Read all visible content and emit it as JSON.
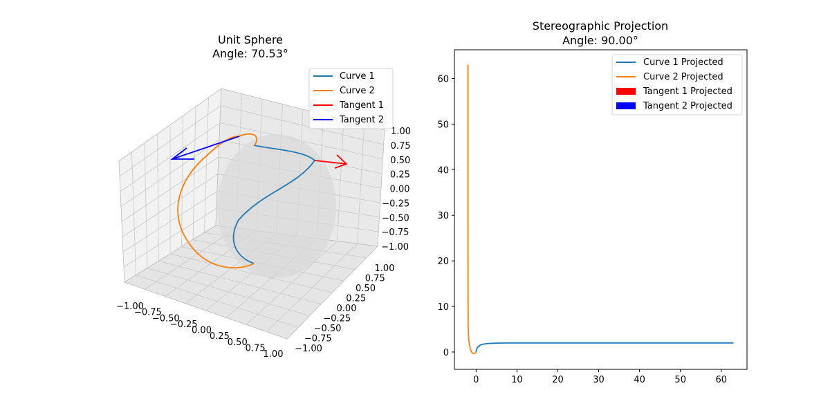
{
  "chart_data": [
    {
      "type": "line",
      "projection": "3d",
      "title": "Unit Sphere",
      "subtitle": "Angle: 70.53°",
      "xlim": [
        -1,
        1
      ],
      "ylim": [
        -1,
        1
      ],
      "zlim": [
        -1,
        1
      ],
      "x_ticks": [
        "−1.00",
        "−0.75",
        "−0.50",
        "−0.25",
        "0.00",
        "0.25",
        "0.50",
        "0.75",
        "1.00"
      ],
      "y_ticks": [
        "−1.00",
        "−0.75",
        "−0.50",
        "−0.25",
        "0.00",
        "0.25",
        "0.50",
        "0.75",
        "1.00"
      ],
      "z_ticks": [
        "−1.00",
        "−0.75",
        "−0.50",
        "−0.25",
        "0.00",
        "0.25",
        "0.50",
        "0.75",
        "1.00"
      ],
      "grid": true,
      "legend_position": "top-right",
      "surface": "unit sphere",
      "series": [
        {
          "name": "Curve 1",
          "color": "#1f77b4",
          "kind": "line"
        },
        {
          "name": "Curve 2",
          "color": "#ff7f0e",
          "kind": "line"
        },
        {
          "name": "Tangent 1",
          "color": "#ff0000",
          "kind": "arrow"
        },
        {
          "name": "Tangent 2",
          "color": "#0000ff",
          "kind": "arrow"
        }
      ]
    },
    {
      "type": "line",
      "title": "Stereographic Projection",
      "subtitle": "Angle: 90.00°",
      "xlim": [
        -5.3,
        66.3
      ],
      "ylim": [
        -3.8,
        66.3
      ],
      "x_ticks": [
        0,
        10,
        20,
        30,
        40,
        50,
        60
      ],
      "y_ticks": [
        0,
        10,
        20,
        30,
        40,
        50,
        60
      ],
      "grid": false,
      "legend_position": "top-right",
      "series": [
        {
          "name": "Curve 1 Projected",
          "color": "#1f77b4",
          "kind": "line",
          "x": [
            0.0,
            0.1,
            0.3,
            0.6,
            1.0,
            1.5,
            2.2,
            3.0,
            4.5,
            6.0,
            8.0,
            10.0,
            15.0,
            20.0,
            30.0,
            40.0,
            50.0,
            63.0
          ],
          "y": [
            0.0,
            0.5,
            0.9,
            1.25,
            1.5,
            1.68,
            1.8,
            1.87,
            1.93,
            1.96,
            1.98,
            1.99,
            2.0,
            2.0,
            2.0,
            2.0,
            2.0,
            2.0
          ]
        },
        {
          "name": "Curve 2 Projected",
          "color": "#ff7f0e",
          "kind": "line",
          "x": [
            -2.0,
            -2.0,
            -1.98,
            -1.96,
            -1.93,
            -1.87,
            -1.78,
            -1.6,
            -1.4,
            -1.1,
            -0.8,
            -0.5,
            -0.2,
            0.0
          ],
          "y": [
            63.0,
            40.0,
            20.0,
            10.0,
            6.0,
            4.0,
            2.5,
            1.5,
            0.6,
            0.0,
            -0.3,
            -0.3,
            -0.2,
            0.0
          ]
        },
        {
          "name": "Tangent 1 Projected",
          "color": "#ff0000",
          "kind": "arrow"
        },
        {
          "name": "Tangent 2 Projected",
          "color": "#0000ff",
          "kind": "arrow"
        }
      ]
    }
  ]
}
